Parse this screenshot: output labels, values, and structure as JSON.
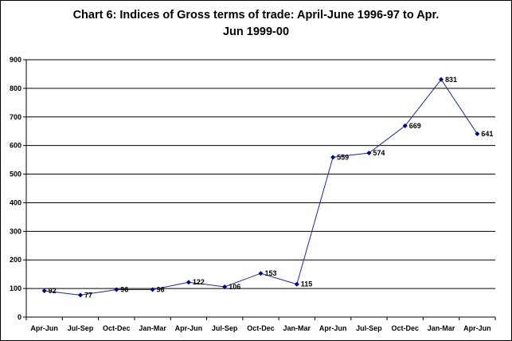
{
  "chart_data": {
    "type": "line",
    "title_line1": "Chart 6: Indices of Gross terms of trade: April-June 1996-97 to Apr.",
    "title_line2": "Jun 1999-00",
    "xlabel": "",
    "ylabel": "",
    "categories": [
      "Apr-Jun",
      "Jul-Sep",
      "Oct-Dec",
      "Jan-Mar",
      "Apr-Jun",
      "Jul-Sep",
      "Oct-Dec",
      "Jan-Mar",
      "Apr-Jun",
      "Jul-Sep",
      "Oct-Dec",
      "Jan-Mar",
      "Apr-Jun"
    ],
    "series": [
      {
        "values": [
          92,
          77,
          96,
          96,
          122,
          106,
          153,
          115,
          559,
          574,
          669,
          831,
          641
        ]
      }
    ],
    "ylim": [
      0,
      900
    ],
    "yticks": [
      0,
      100,
      200,
      300,
      400,
      500,
      600,
      700,
      800,
      900
    ],
    "grid": true,
    "legend": "none",
    "colors": {
      "line": "#1f2a8a",
      "marker": "#00007f",
      "grid": "#000000",
      "text": "#000000"
    }
  }
}
